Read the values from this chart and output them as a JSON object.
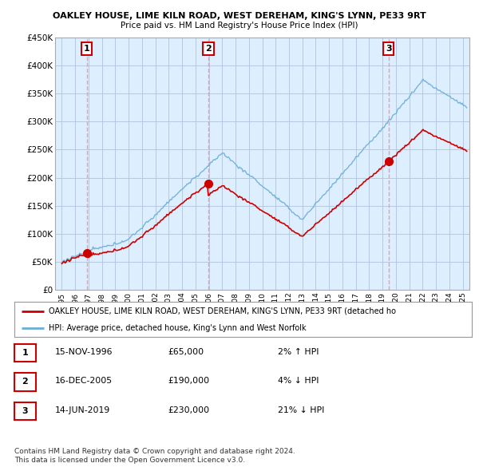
{
  "title1": "OAKLEY HOUSE, LIME KILN ROAD, WEST DEREHAM, KING'S LYNN, PE33 9RT",
  "title2": "Price paid vs. HM Land Registry's House Price Index (HPI)",
  "ylim": [
    0,
    450000
  ],
  "yticks": [
    0,
    50000,
    100000,
    150000,
    200000,
    250000,
    300000,
    350000,
    400000,
    450000
  ],
  "ytick_labels": [
    "£0",
    "£50K",
    "£100K",
    "£150K",
    "£200K",
    "£250K",
    "£300K",
    "£350K",
    "£400K",
    "£450K"
  ],
  "sale_dates": [
    1996.88,
    2005.96,
    2019.45
  ],
  "sale_prices": [
    65000,
    190000,
    230000
  ],
  "sale_labels": [
    "1",
    "2",
    "3"
  ],
  "legend_line1": "OAKLEY HOUSE, LIME KILN ROAD, WEST DEREHAM, KING'S LYNN, PE33 9RT (detached ho",
  "legend_line2": "HPI: Average price, detached house, King's Lynn and West Norfolk",
  "table_rows": [
    [
      "1",
      "15-NOV-1996",
      "£65,000",
      "2% ↑ HPI"
    ],
    [
      "2",
      "16-DEC-2005",
      "£190,000",
      "4% ↓ HPI"
    ],
    [
      "3",
      "14-JUN-2019",
      "£230,000",
      "21% ↓ HPI"
    ]
  ],
  "footer1": "Contains HM Land Registry data © Crown copyright and database right 2024.",
  "footer2": "This data is licensed under the Open Government Licence v3.0.",
  "hpi_color": "#6baed6",
  "price_color": "#cc0000",
  "vline_color": "#ff9999",
  "bg_color": "#ddeeff",
  "grid_color": "#b0c4de"
}
